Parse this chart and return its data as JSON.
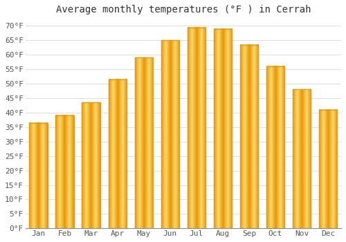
{
  "title": "Average monthly temperatures (°F ) in Cerrah",
  "months": [
    "Jan",
    "Feb",
    "Mar",
    "Apr",
    "May",
    "Jun",
    "Jul",
    "Aug",
    "Sep",
    "Oct",
    "Nov",
    "Dec"
  ],
  "values": [
    36.5,
    39.0,
    43.5,
    51.5,
    59.0,
    65.0,
    69.5,
    69.0,
    63.5,
    56.0,
    48.0,
    41.0
  ],
  "bar_color_center": "#FFD966",
  "bar_color_edge": "#E8970A",
  "ylim": [
    0,
    72
  ],
  "yticks": [
    0,
    5,
    10,
    15,
    20,
    25,
    30,
    35,
    40,
    45,
    50,
    55,
    60,
    65,
    70
  ],
  "background_color": "#FFFFFF",
  "grid_color": "#DDDDDD",
  "title_fontsize": 10,
  "tick_fontsize": 8,
  "font_family": "monospace"
}
